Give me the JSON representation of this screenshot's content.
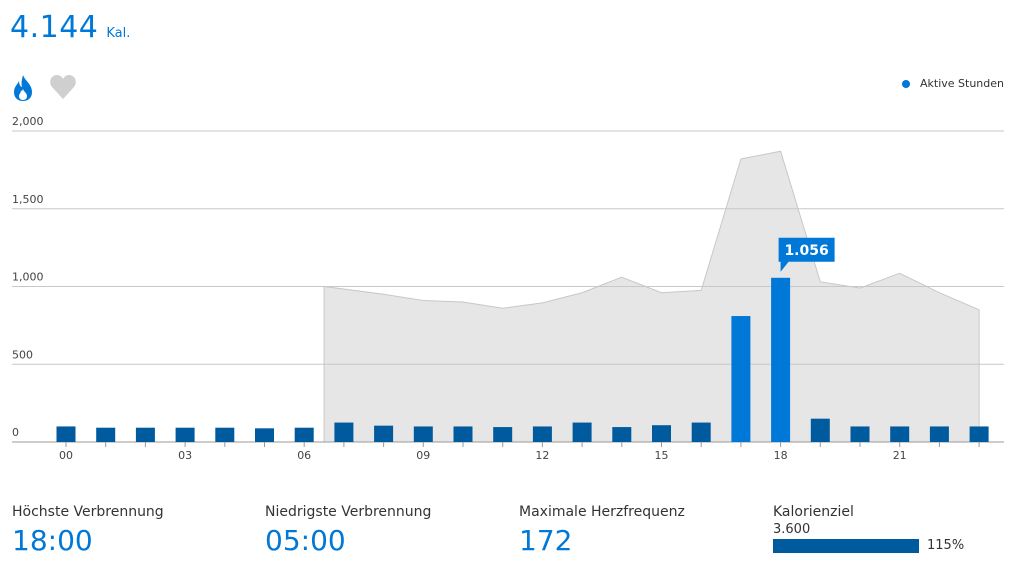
{
  "header": {
    "total_value": "4.144",
    "total_unit": "Kal."
  },
  "icons": {
    "calories": "flame-icon",
    "heart": "heart-icon"
  },
  "legend": {
    "label": "Aktive Stunden"
  },
  "colors": {
    "accent": "#0078d7",
    "bar": "#005a9e",
    "area": "#e6e6e6",
    "area_stroke": "#c8c8c8"
  },
  "chart_data": {
    "type": "bar",
    "y_ticks": [
      "2,000",
      "1,500",
      "1,000",
      "500",
      "0"
    ],
    "y_tick_values": [
      2000,
      1500,
      1000,
      500,
      0
    ],
    "ylim": [
      0,
      2000
    ],
    "x_tick_labels": [
      "00",
      "03",
      "06",
      "09",
      "12",
      "15",
      "18",
      "21"
    ],
    "x_tick_hours": [
      0,
      3,
      6,
      9,
      12,
      15,
      18,
      21
    ],
    "hours": [
      0,
      1,
      2,
      3,
      4,
      5,
      6,
      7,
      8,
      9,
      10,
      11,
      12,
      13,
      14,
      15,
      16,
      17,
      18,
      19,
      20,
      21,
      22,
      23
    ],
    "calories": [
      100,
      92,
      92,
      92,
      92,
      88,
      92,
      125,
      105,
      100,
      100,
      96,
      100,
      125,
      96,
      108,
      125,
      810,
      1056,
      150,
      100,
      100,
      100,
      100
    ],
    "active_hours": [
      17,
      18
    ],
    "heart_rate_area": {
      "hours": [
        7,
        8,
        9,
        10,
        11,
        12,
        13,
        14,
        15,
        16,
        17,
        18,
        19,
        20,
        21,
        22,
        23
      ],
      "values": [
        1000,
        950,
        910,
        900,
        860,
        895,
        960,
        1060,
        960,
        975,
        1820,
        1870,
        1030,
        990,
        1085,
        960,
        850
      ]
    },
    "callout": {
      "hour": 18,
      "label": "1.056"
    },
    "grid": true,
    "legend_position": "top-right"
  },
  "stats": [
    {
      "label": "Höchste Verbrennung",
      "value": "18:00"
    },
    {
      "label": "Niedrigste Verbrennung",
      "value": "05:00"
    },
    {
      "label": "Maximale Herzfrequenz",
      "value": "172"
    }
  ],
  "goal": {
    "label": "Kalorienziel",
    "target": "3.600",
    "percent_label": "115%",
    "progress": 1.15
  }
}
